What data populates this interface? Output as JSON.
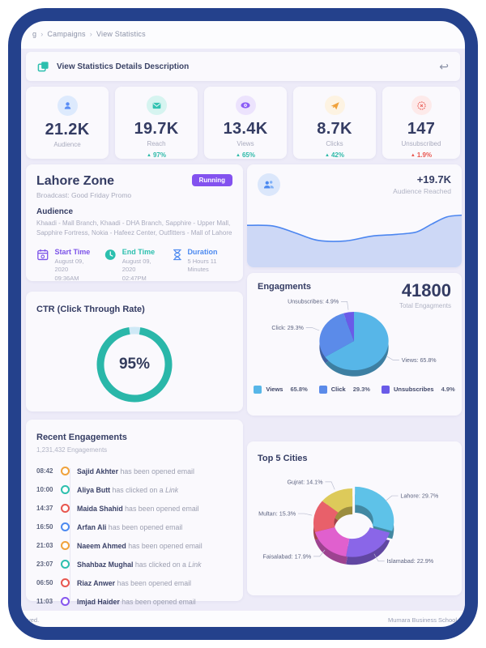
{
  "breadcrumb": {
    "items": [
      "g",
      "Campaigns",
      "View Statistics"
    ]
  },
  "header": {
    "title": "View Statistics Details Description"
  },
  "stats": [
    {
      "label": "Audience",
      "value": "21.2K",
      "change": null
    },
    {
      "label": "Reach",
      "value": "19.7K",
      "change": "97%",
      "direction": "up"
    },
    {
      "label": "Views",
      "value": "13.4K",
      "change": "65%",
      "direction": "up"
    },
    {
      "label": "Clicks",
      "value": "8.7K",
      "change": "42%",
      "direction": "up"
    },
    {
      "label": "Unsubscribed",
      "value": "147",
      "change": "1.9%",
      "direction": "up-negative"
    }
  ],
  "campaign": {
    "title": "Lahore Zone",
    "status": "Running",
    "broadcast": "Broadcast: Good Friday Promo",
    "audience_heading": "Audience",
    "audience_list": "Khaadi - Mall Branch, Khaadi - DHA Branch, Sapphire - Upper Mall, Sapphire Fortress, Nokia - Hafeez Center, Outfitters - Mall of Lahore",
    "start": {
      "label": "Start Time",
      "date": "August 09, 2020",
      "time": "09:36AM"
    },
    "end": {
      "label": "End Time",
      "date": "August 09, 2020",
      "time": "02:47PM"
    },
    "duration": {
      "label": "Duration",
      "value": "5 Hours 11 Minutes"
    }
  },
  "reach_card": {
    "delta": "+19.7K",
    "delta_label": "Audience Reached"
  },
  "engagements_card": {
    "title": "Engagments",
    "total": "41800",
    "total_label": "Total Engagments"
  },
  "ctr_card": {
    "title": "CTR (Click Through Rate)",
    "value_display": "95%"
  },
  "recent": {
    "title": "Recent Engagements",
    "subtitle": "1,231,432 Engagements",
    "items": [
      {
        "time": "08:42",
        "name": "Sajid Akhter",
        "action": "has been opened email",
        "color": "#f0a23c"
      },
      {
        "time": "10:00",
        "name": "Aliya Butt",
        "action": "has clicked on a",
        "action_em": "Link",
        "color": "#2dbfae"
      },
      {
        "time": "14:37",
        "name": "Maida Shahid",
        "action": "has been opened email",
        "color": "#e8564f"
      },
      {
        "time": "16:50",
        "name": "Arfan Ali",
        "action": "has been opened email",
        "color": "#4d8af0"
      },
      {
        "time": "21:03",
        "name": "Naeem Ahmed",
        "action": "has been opened email",
        "color": "#f0a23c"
      },
      {
        "time": "23:07",
        "name": "Shahbaz Mughal",
        "action": "has clicked on a",
        "action_em": "Link",
        "color": "#2dbfae"
      },
      {
        "time": "06:50",
        "name": "Riaz Anwer",
        "action": "has been opened email",
        "color": "#e8564f"
      },
      {
        "time": "11:03",
        "name": "Imjad Haider",
        "action": "has been opened email",
        "color": "#8656ee"
      }
    ]
  },
  "cities_card": {
    "title": "Top 5 Cities"
  },
  "footer": {
    "left": "ved.",
    "right": "Mumara Business School"
  },
  "colors": {
    "frame": "#24418c",
    "accent_teal": "#2dbfae",
    "accent_purple": "#8352ef",
    "accent_blue": "#4d8af0",
    "negative_red": "#e8564f"
  },
  "chart_data": {
    "audience_reached": {
      "type": "area",
      "points": [
        [
          0,
          0.3
        ],
        [
          0.12,
          0.31
        ],
        [
          0.22,
          0.42
        ],
        [
          0.33,
          0.55
        ],
        [
          0.46,
          0.56
        ],
        [
          0.58,
          0.48
        ],
        [
          0.7,
          0.45
        ],
        [
          0.79,
          0.41
        ],
        [
          0.86,
          0.28
        ],
        [
          0.93,
          0.16
        ],
        [
          1,
          0.13
        ]
      ],
      "line_color": "#4c86f0",
      "fill_color": "#cdd8f6",
      "annotation": "+19.7K",
      "annotation_label": "Audience Reached"
    },
    "engagements_pie": {
      "type": "pie",
      "title": "Engagments",
      "total": 41800,
      "slices": [
        {
          "name": "Views",
          "value": 65.8,
          "pct": "65.8%",
          "color": "#57b6e8",
          "label": "Views: 65.8%"
        },
        {
          "name": "Click",
          "value": 29.3,
          "pct": "29.3%",
          "color": "#5b8be9",
          "label": "Click: 29.3%"
        },
        {
          "name": "Unsubscribes",
          "value": 4.9,
          "pct": "4.9%",
          "color": "#6a5be8",
          "label": "Unsubscribes: 4.9%"
        }
      ],
      "legend_position": "bottom"
    },
    "ctr_ring": {
      "type": "donut",
      "value": 95,
      "display": "95%",
      "color": "#2ab7a9",
      "track_color": "#cfe9f6"
    },
    "top_cities": {
      "type": "donut",
      "title": "Top 5 Cities",
      "slices": [
        {
          "name": "Lahore",
          "value": 29.7,
          "color": "#5ec2e8",
          "label": "Lahore: 29.7%",
          "explode": true
        },
        {
          "name": "Islamabad",
          "value": 22.9,
          "color": "#8a66e8",
          "label": "Islamabad: 22.9%"
        },
        {
          "name": "Faisalabad",
          "value": 17.9,
          "color": "#e060ce",
          "label": "Faisalabad: 17.9%"
        },
        {
          "name": "Multan",
          "value": 15.3,
          "color": "#e8606a",
          "label": "Multan: 15.3%"
        },
        {
          "name": "Gujrat",
          "value": 14.1,
          "color": "#ddca5a",
          "label": "Gujrat: 14.1%"
        }
      ]
    }
  }
}
